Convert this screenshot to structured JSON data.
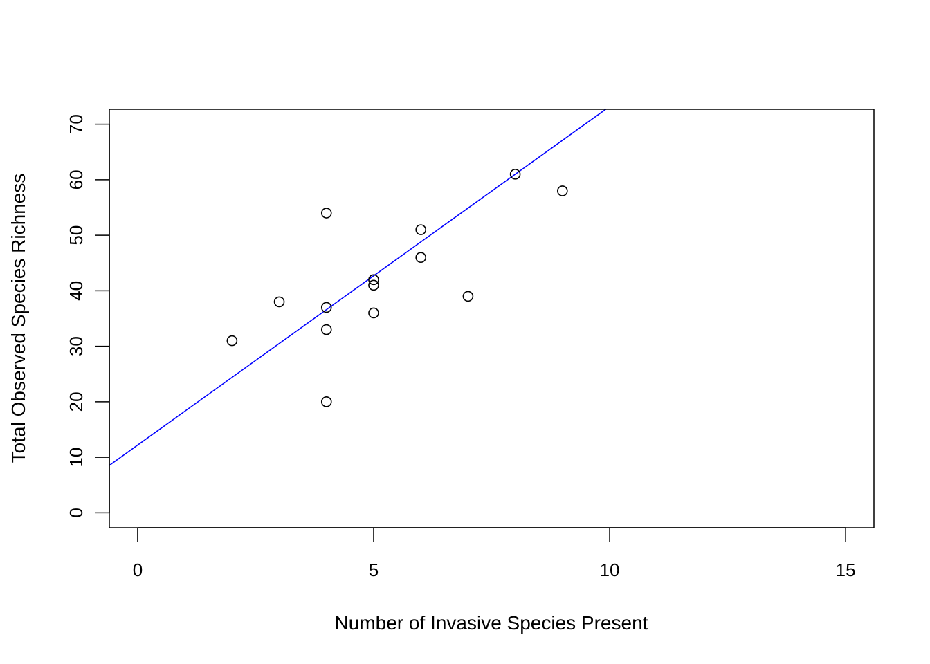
{
  "chart_data": {
    "type": "scatter",
    "title": "",
    "xlabel": "Number of Invasive Species Present",
    "ylabel": "Total Observed Species Richness",
    "xlim": [
      -0.6,
      15.6
    ],
    "ylim": [
      -2.7,
      72.7
    ],
    "xticks": [
      0,
      5,
      10,
      15
    ],
    "yticks": [
      0,
      10,
      20,
      30,
      40,
      50,
      60,
      70
    ],
    "grid": false,
    "legend": "none",
    "point_color": "#000000",
    "points": [
      {
        "x": 2,
        "y": 31
      },
      {
        "x": 3,
        "y": 38
      },
      {
        "x": 4,
        "y": 54
      },
      {
        "x": 4,
        "y": 37
      },
      {
        "x": 4,
        "y": 33
      },
      {
        "x": 4,
        "y": 20
      },
      {
        "x": 5,
        "y": 42
      },
      {
        "x": 5,
        "y": 41
      },
      {
        "x": 5,
        "y": 36
      },
      {
        "x": 6,
        "y": 51
      },
      {
        "x": 6,
        "y": 46
      },
      {
        "x": 7,
        "y": 39
      },
      {
        "x": 8,
        "y": 61
      },
      {
        "x": 9,
        "y": 58
      }
    ],
    "fit_line": {
      "intercept": 12.2,
      "slope": 6.1,
      "color": "#0000ff"
    }
  }
}
